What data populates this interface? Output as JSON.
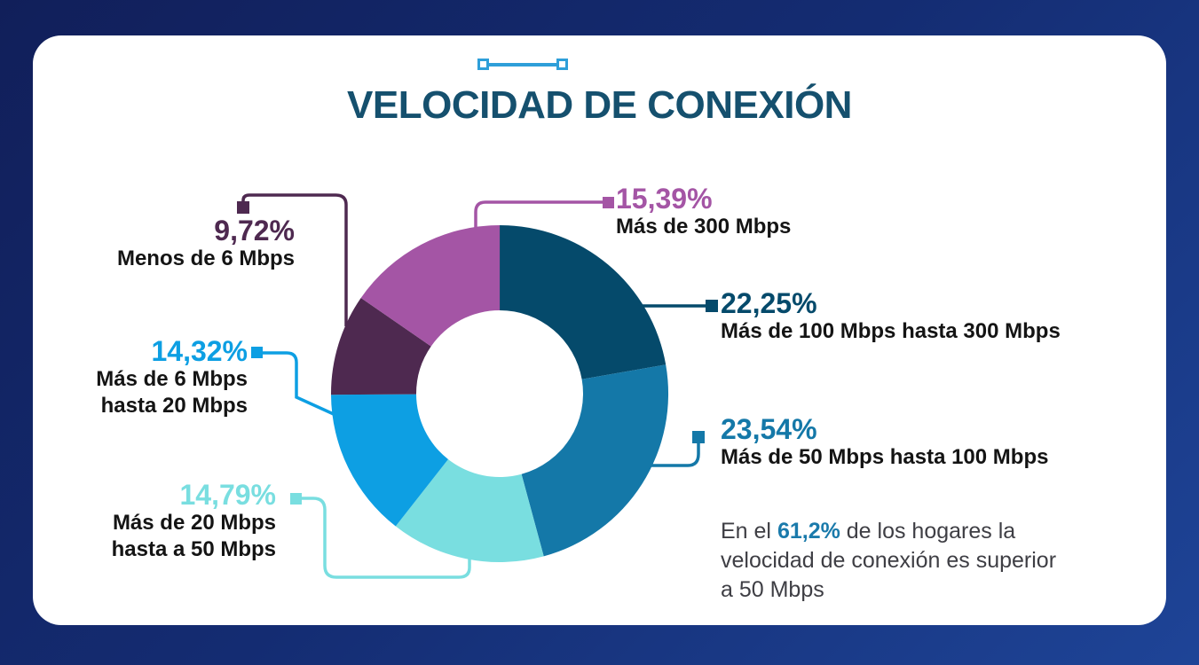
{
  "title": "VELOCIDAD DE CONEXIÓN",
  "title_color": "#15506e",
  "accent_color": "#2e9fd9",
  "card_color": "#ffffff",
  "background_gradient": [
    "#111f5a",
    "#1e4497"
  ],
  "chart_data": {
    "type": "pie",
    "subtype": "donut",
    "title": "VELOCIDAD DE CONEXIÓN",
    "unit": "%",
    "direction": "clockwise",
    "start_angle_deg": 0,
    "series": [
      {
        "key": "mas100",
        "label": "Más de 100 Mbps hasta 300 Mbps",
        "value": 22.25,
        "value_label": "22,25%",
        "color": "#054a6b"
      },
      {
        "key": "mas50",
        "label": "Más de 50 Mbps hasta 100 Mbps",
        "value": 23.54,
        "value_label": "23,54%",
        "color": "#1478a8"
      },
      {
        "key": "mas20",
        "label": "Más de 20 Mbps hasta a 50 Mbps",
        "value": 14.79,
        "value_label": "14,79%",
        "color": "#79dee0"
      },
      {
        "key": "mas6",
        "label": "Más de 6 Mbps hasta 20 Mbps",
        "value": 14.32,
        "value_label": "14,32%",
        "color": "#0d9fe3"
      },
      {
        "key": "menos6",
        "label": "Menos de 6 Mbps",
        "value": 9.72,
        "value_label": "9,72%",
        "color": "#4e2950"
      },
      {
        "key": "mas300",
        "label": "Más de 300 Mbps",
        "value": 15.39,
        "value_label": "15,39%",
        "color": "#a455a5"
      }
    ],
    "annotation": "En el 61,2% de los hogares la velocidad de conexión es superior a 50 Mbps"
  },
  "callouts": {
    "mas300": {
      "pct": "15,39%",
      "lines": [
        "Más de 300 Mbps"
      ]
    },
    "mas100": {
      "pct": "22,25%",
      "lines": [
        "Más de 100 Mbps hasta 300 Mbps"
      ]
    },
    "mas50": {
      "pct": "23,54%",
      "lines": [
        "Más de 50 Mbps hasta 100 Mbps"
      ]
    },
    "mas20": {
      "pct": "14,79%",
      "lines": [
        "Más de 20 Mbps",
        "hasta a 50 Mbps"
      ]
    },
    "mas6": {
      "pct": "14,32%",
      "lines": [
        "Más de 6 Mbps",
        "hasta 20 Mbps"
      ]
    },
    "menos6": {
      "pct": "9,72%",
      "lines": [
        "Menos de 6 Mbps"
      ]
    }
  },
  "note": {
    "line1_prefix": "En el ",
    "line1_highlight": "61,2%",
    "line1_suffix": " de los hogares la",
    "line2": "velocidad de conexión es superior",
    "line3": "a 50 Mbps",
    "highlight_color": "#1a7aab"
  }
}
